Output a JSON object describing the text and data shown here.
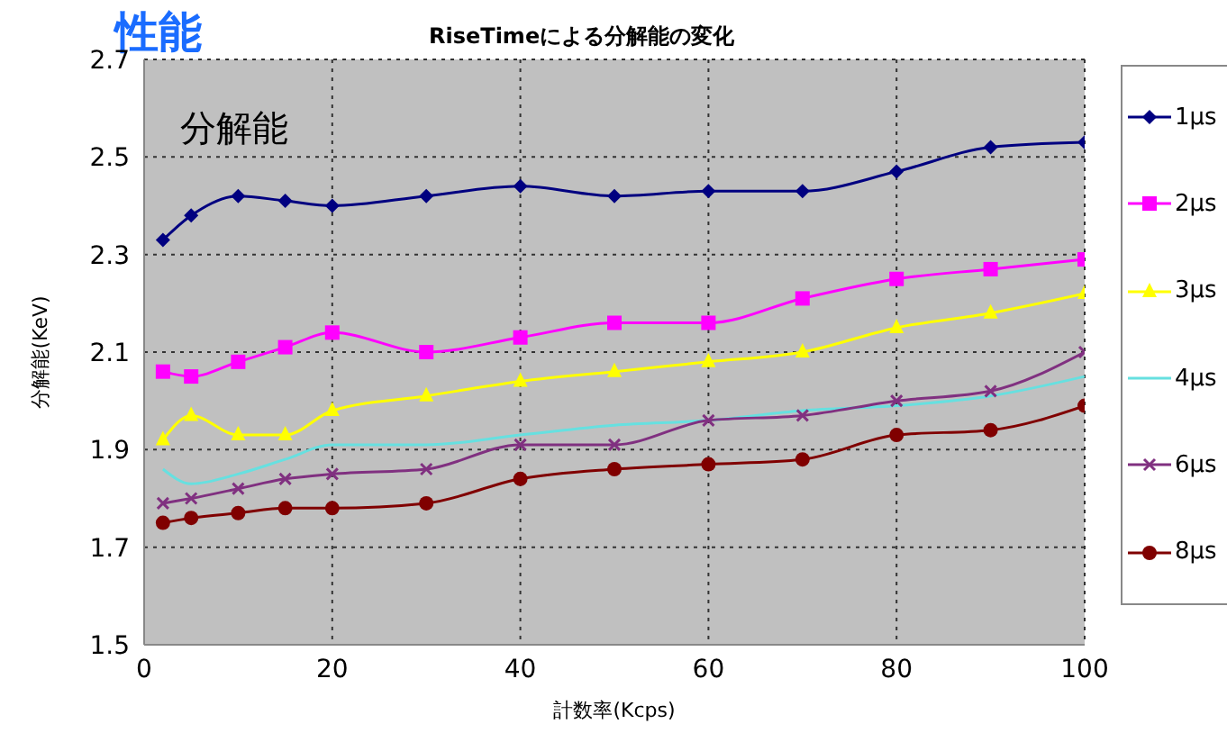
{
  "chart_data": {
    "type": "line",
    "title": "RiseTimeによる分解能の変化",
    "xlabel": "計数率(Kcps)",
    "ylabel": "分解能(KeV)",
    "annotations": [
      "性能",
      "分解能"
    ],
    "x": [
      2,
      5,
      10,
      15,
      20,
      30,
      40,
      50,
      60,
      70,
      80,
      90,
      100
    ],
    "xlim": [
      0,
      100
    ],
    "xticks": [
      0,
      20,
      40,
      60,
      80,
      100
    ],
    "ylim": [
      1.5,
      2.7
    ],
    "yticks": [
      1.5,
      1.7,
      1.9,
      2.1,
      2.3,
      2.5,
      2.7
    ],
    "grid": true,
    "legend": "right",
    "line_style": "solid",
    "series": [
      {
        "name": "1μs",
        "color": "#000080",
        "marker": "diamond",
        "values": [
          2.33,
          2.38,
          2.42,
          2.41,
          2.4,
          2.42,
          2.44,
          2.42,
          2.43,
          2.43,
          2.47,
          2.52,
          2.53
        ]
      },
      {
        "name": "2μs",
        "color": "#ff00ff",
        "marker": "square",
        "values": [
          2.06,
          2.05,
          2.08,
          2.11,
          2.14,
          2.1,
          2.13,
          2.16,
          2.16,
          2.21,
          2.25,
          2.27,
          2.29
        ]
      },
      {
        "name": "3μs",
        "color": "#ffff00",
        "marker": "triangle",
        "values": [
          1.92,
          1.97,
          1.93,
          1.93,
          1.98,
          2.01,
          2.04,
          2.06,
          2.08,
          2.1,
          2.15,
          2.18,
          2.22
        ]
      },
      {
        "name": "4μs",
        "color": "#66e0e0",
        "marker": "none",
        "values": [
          1.86,
          1.83,
          1.85,
          1.88,
          1.91,
          1.91,
          1.93,
          1.95,
          1.96,
          1.98,
          1.99,
          2.01,
          2.05
        ]
      },
      {
        "name": "6μs",
        "color": "#803080",
        "marker": "cross",
        "values": [
          1.79,
          1.8,
          1.82,
          1.84,
          1.85,
          1.86,
          1.91,
          1.91,
          1.96,
          1.97,
          2.0,
          2.02,
          2.1
        ]
      },
      {
        "name": "8μs",
        "color": "#800000",
        "marker": "circle",
        "values": [
          1.75,
          1.76,
          1.77,
          1.78,
          1.78,
          1.79,
          1.84,
          1.86,
          1.87,
          1.88,
          1.93,
          1.94,
          1.99
        ]
      }
    ]
  }
}
